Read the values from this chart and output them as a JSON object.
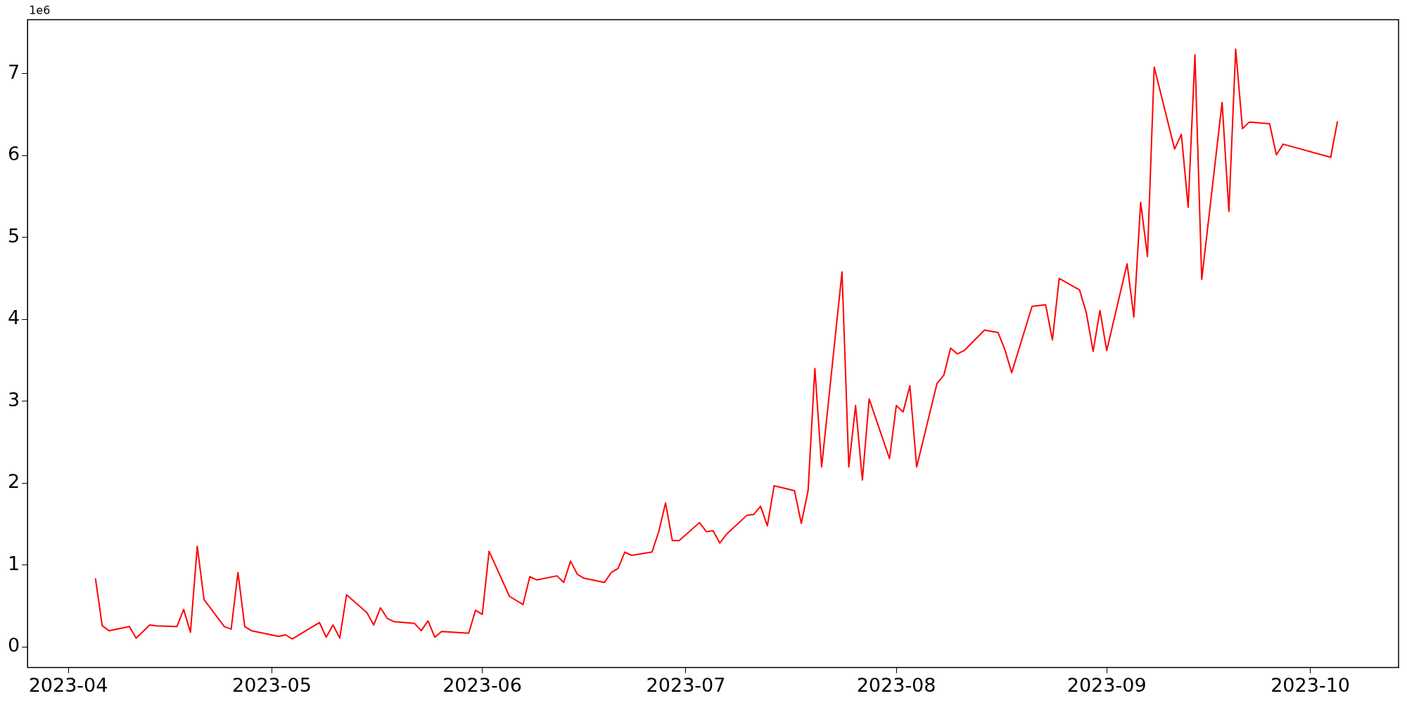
{
  "chart_data": {
    "type": "line",
    "annotations": [
      "1e6"
    ],
    "x": [
      "2023-04-05",
      "2023-04-06",
      "2023-04-07",
      "2023-04-10",
      "2023-04-11",
      "2023-04-13",
      "2023-04-14",
      "2023-04-17",
      "2023-04-18",
      "2023-04-19",
      "2023-04-20",
      "2023-04-21",
      "2023-04-24",
      "2023-04-25",
      "2023-04-26",
      "2023-04-27",
      "2023-04-28",
      "2023-05-02",
      "2023-05-03",
      "2023-05-04",
      "2023-05-08",
      "2023-05-09",
      "2023-05-10",
      "2023-05-11",
      "2023-05-12",
      "2023-05-15",
      "2023-05-16",
      "2023-05-17",
      "2023-05-18",
      "2023-05-19",
      "2023-05-22",
      "2023-05-23",
      "2023-05-24",
      "2023-05-25",
      "2023-05-26",
      "2023-05-30",
      "2023-05-31",
      "2023-06-01",
      "2023-06-02",
      "2023-06-05",
      "2023-06-07",
      "2023-06-08",
      "2023-06-09",
      "2023-06-12",
      "2023-06-13",
      "2023-06-14",
      "2023-06-15",
      "2023-06-16",
      "2023-06-19",
      "2023-06-20",
      "2023-06-21",
      "2023-06-22",
      "2023-06-23",
      "2023-06-26",
      "2023-06-27",
      "2023-06-28",
      "2023-06-29",
      "2023-06-30",
      "2023-07-03",
      "2023-07-04",
      "2023-07-05",
      "2023-07-06",
      "2023-07-07",
      "2023-07-10",
      "2023-07-11",
      "2023-07-12",
      "2023-07-13",
      "2023-07-14",
      "2023-07-17",
      "2023-07-18",
      "2023-07-19",
      "2023-07-20",
      "2023-07-21",
      "2023-07-24",
      "2023-07-25",
      "2023-07-26",
      "2023-07-27",
      "2023-07-28",
      "2023-07-31",
      "2023-08-01",
      "2023-08-02",
      "2023-08-03",
      "2023-08-04",
      "2023-08-07",
      "2023-08-08",
      "2023-08-09",
      "2023-08-10",
      "2023-08-11",
      "2023-08-14",
      "2023-08-16",
      "2023-08-17",
      "2023-08-18",
      "2023-08-21",
      "2023-08-23",
      "2023-08-24",
      "2023-08-25",
      "2023-08-28",
      "2023-08-29",
      "2023-08-30",
      "2023-08-31",
      "2023-09-01",
      "2023-09-04",
      "2023-09-05",
      "2023-09-06",
      "2023-09-07",
      "2023-09-08",
      "2023-09-11",
      "2023-09-12",
      "2023-09-13",
      "2023-09-14",
      "2023-09-15",
      "2023-09-18",
      "2023-09-19",
      "2023-09-20",
      "2023-09-21",
      "2023-09-22",
      "2023-09-25",
      "2023-09-26",
      "2023-09-27",
      "2023-10-04",
      "2023-10-05"
    ],
    "series": [
      {
        "color": "#ff0000",
        "values": [
          0.84,
          0.26,
          0.2,
          0.25,
          0.11,
          0.27,
          0.26,
          0.25,
          0.46,
          0.18,
          1.23,
          0.58,
          0.25,
          0.22,
          0.91,
          0.25,
          0.2,
          0.13,
          0.15,
          0.1,
          0.3,
          0.12,
          0.27,
          0.11,
          0.64,
          0.42,
          0.27,
          0.48,
          0.35,
          0.31,
          0.29,
          0.2,
          0.32,
          0.12,
          0.19,
          0.17,
          0.45,
          0.4,
          1.17,
          0.62,
          0.52,
          0.86,
          0.82,
          0.87,
          0.79,
          1.05,
          0.89,
          0.84,
          0.79,
          0.91,
          0.96,
          1.16,
          1.12,
          1.16,
          1.41,
          1.76,
          1.3,
          1.3,
          1.52,
          1.41,
          1.42,
          1.27,
          1.38,
          1.61,
          1.62,
          1.72,
          1.48,
          1.97,
          1.91,
          1.51,
          1.91,
          3.4,
          2.2,
          4.58,
          2.2,
          2.95,
          2.04,
          3.03,
          2.3,
          2.95,
          2.87,
          3.19,
          2.2,
          3.22,
          3.32,
          3.65,
          3.58,
          3.62,
          3.87,
          3.84,
          3.63,
          3.35,
          4.16,
          4.18,
          3.75,
          4.5,
          4.36,
          4.08,
          3.61,
          4.11,
          3.62,
          4.68,
          4.03,
          5.43,
          4.77,
          7.08,
          6.08,
          6.26,
          5.37,
          7.23,
          4.49,
          6.65,
          5.32,
          7.3,
          6.33,
          6.41,
          6.39,
          6.01,
          6.14,
          5.98,
          6.42
        ]
      }
    ],
    "xlim": [
      "2023-03-26",
      "2023-10-14"
    ],
    "xticks": [
      {
        "value": "2023-04-01",
        "label": "2023-04"
      },
      {
        "value": "2023-05-01",
        "label": "2023-05"
      },
      {
        "value": "2023-06-01",
        "label": "2023-06"
      },
      {
        "value": "2023-07-01",
        "label": "2023-07"
      },
      {
        "value": "2023-08-01",
        "label": "2023-08"
      },
      {
        "value": "2023-09-01",
        "label": "2023-09"
      },
      {
        "value": "2023-10-01",
        "label": "2023-10"
      }
    ],
    "ylim": [
      -0.25,
      7.66
    ],
    "yticks": [
      0,
      1,
      2,
      3,
      4,
      5,
      6,
      7
    ],
    "grid": false,
    "legend": false,
    "marker": "none",
    "line_style": "solid"
  }
}
